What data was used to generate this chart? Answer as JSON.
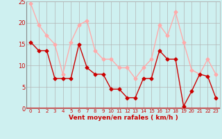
{
  "x": [
    0,
    1,
    2,
    3,
    4,
    5,
    6,
    7,
    8,
    9,
    10,
    11,
    12,
    13,
    14,
    15,
    16,
    17,
    18,
    19,
    20,
    21,
    22,
    23
  ],
  "wind_avg": [
    15.5,
    13.5,
    13.5,
    7,
    7,
    7,
    15,
    9.5,
    8,
    8,
    4.5,
    4.5,
    2.5,
    2.5,
    7,
    7,
    13.5,
    11.5,
    11.5,
    0.5,
    4,
    8,
    7.5,
    2.5
  ],
  "wind_gust": [
    24.5,
    19.5,
    17,
    15,
    8,
    15.5,
    19.5,
    20.5,
    13.5,
    11.5,
    11.5,
    9.5,
    9.5,
    7,
    9.5,
    11.5,
    19.5,
    17,
    22.5,
    15.5,
    9,
    8,
    11.5,
    8
  ],
  "avg_color": "#cc0000",
  "gust_color": "#ffaaaa",
  "background_color": "#cef0f0",
  "grid_color": "#b0b0b0",
  "xlabel": "Vent moyen/en rafales ( km/h )",
  "xlabel_color": "#cc0000",
  "tick_color": "#cc0000",
  "ylim": [
    0,
    25
  ],
  "xlim_min": -0.5,
  "xlim_max": 23.5,
  "yticks": [
    0,
    5,
    10,
    15,
    20,
    25
  ],
  "xticks": [
    0,
    1,
    2,
    3,
    4,
    5,
    6,
    7,
    8,
    9,
    10,
    11,
    12,
    13,
    14,
    15,
    16,
    17,
    18,
    19,
    20,
    21,
    22,
    23
  ],
  "marker": "D",
  "markersize": 2.5,
  "linewidth": 1.0,
  "tick_fontsize": 5,
  "xlabel_fontsize": 6.5
}
